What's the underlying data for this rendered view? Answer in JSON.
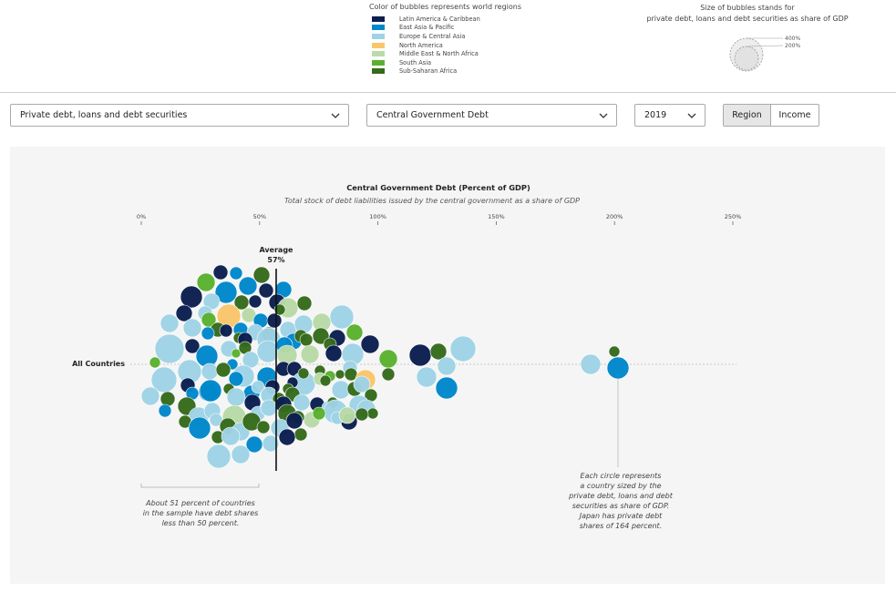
{
  "legend": {
    "title": "Color of bubbles represents world regions",
    "items": [
      {
        "label": "Latin America & Caribbean",
        "color": "#0b1f4f"
      },
      {
        "label": "East Asia & Pacific",
        "color": "#0088cc"
      },
      {
        "label": "Europe & Central Asia",
        "color": "#9fd3e6"
      },
      {
        "label": "North America",
        "color": "#f9c66b"
      },
      {
        "label": "Middle East & North Africa",
        "color": "#b9dba7"
      },
      {
        "label": "South Asia",
        "color": "#5bb12f"
      },
      {
        "label": "Sub-Saharan Africa",
        "color": "#356b1c"
      }
    ]
  },
  "size_legend": {
    "title_line1": "Size of bubbles stands for",
    "title_line2": "private debt, loans and debt securities as share of GDP",
    "labels": [
      "400%",
      "200%"
    ]
  },
  "controls": {
    "indicator_dropdown": "Private debt, loans and debt securities",
    "measure_dropdown": "Central Government Debt",
    "year_dropdown": "2019",
    "group_toggle": [
      "Region",
      "Income"
    ],
    "active_toggle": "Region"
  },
  "chart_data": {
    "type": "scatter",
    "title": "Central Government Debt (Percent of GDP)",
    "subtitle": "Total stock of debt liabilities issued by the central government as a share of GDP",
    "x_ticks": [
      "0%",
      "50%",
      "100%",
      "150%",
      "200%",
      "250%"
    ],
    "xlim": [
      0,
      250
    ],
    "row_label": "All Countries",
    "average": {
      "label": "Average",
      "value_label": "57%",
      "value": 57
    },
    "annotation_left": [
      "About 51 percent of countries",
      "in the sample have debt shares",
      "less than 50 percent."
    ],
    "annotation_right": [
      "Each circle represents",
      "a country sized by the",
      "private debt, loans and debt",
      "securities as share of GDP.",
      "Japan has private debt",
      "shares of 164 percent."
    ]
  }
}
